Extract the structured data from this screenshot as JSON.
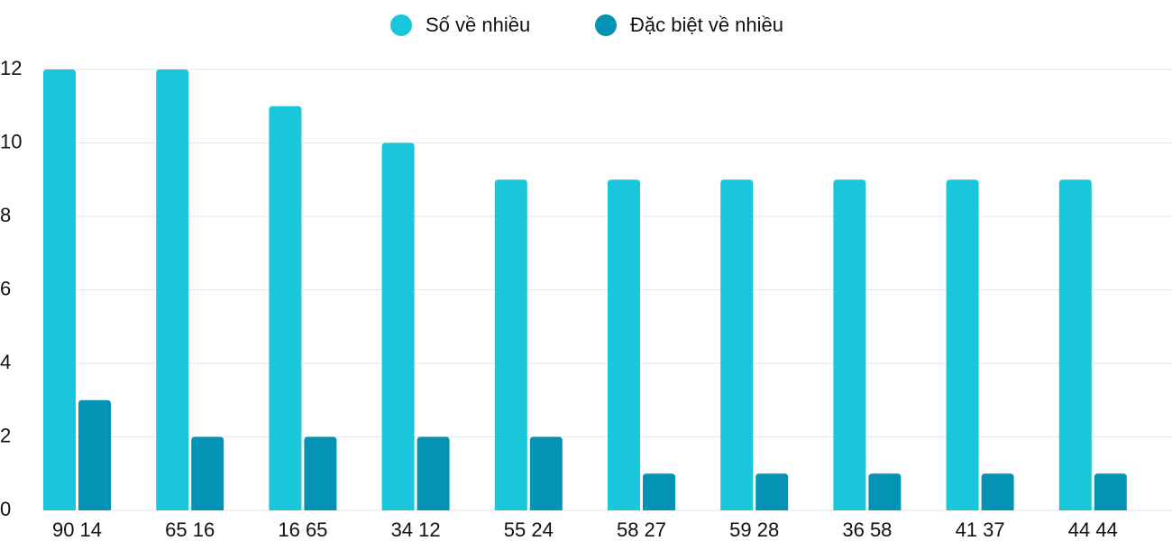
{
  "chart_data": {
    "type": "bar",
    "categories": [
      "90 14",
      "65 16",
      "16 65",
      "34 12",
      "55 24",
      "58 27",
      "59 28",
      "36 58",
      "41 37",
      "44 44"
    ],
    "series": [
      {
        "name": "Số về nhiều",
        "color": "#1ac6d9",
        "values": [
          12,
          12,
          11,
          10,
          9,
          9,
          9,
          9,
          9,
          9
        ]
      },
      {
        "name": "Đặc biệt về nhiều",
        "color": "#0593b5",
        "values": [
          3,
          2,
          2,
          2,
          2,
          1,
          1,
          1,
          1,
          1
        ]
      }
    ],
    "ylim": [
      0,
      12
    ],
    "yticks": [
      0,
      2,
      4,
      6,
      8,
      10,
      12
    ],
    "grid": true,
    "legend": "top"
  }
}
